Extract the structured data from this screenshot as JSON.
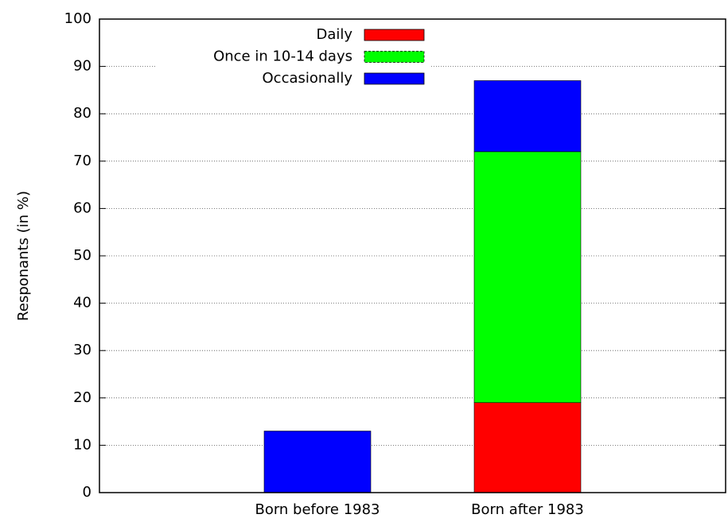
{
  "chart_data": {
    "type": "stacked_bar",
    "y_label": "Responants (in %)",
    "categories": [
      "Born before 1983",
      "Born after 1983"
    ],
    "series": [
      {
        "name": "Daily",
        "color": "#ff0000",
        "values": [
          0,
          19
        ]
      },
      {
        "name": "Once in 10-14 days",
        "color": "#00ff00",
        "values": [
          0,
          53
        ]
      },
      {
        "name": "Occasionally",
        "color": "#0000ff",
        "values": [
          13,
          15
        ]
      }
    ],
    "ylim": [
      0,
      100
    ],
    "yticks": [
      0,
      10,
      20,
      30,
      40,
      50,
      60,
      70,
      80,
      90,
      100
    ],
    "grid": true
  }
}
